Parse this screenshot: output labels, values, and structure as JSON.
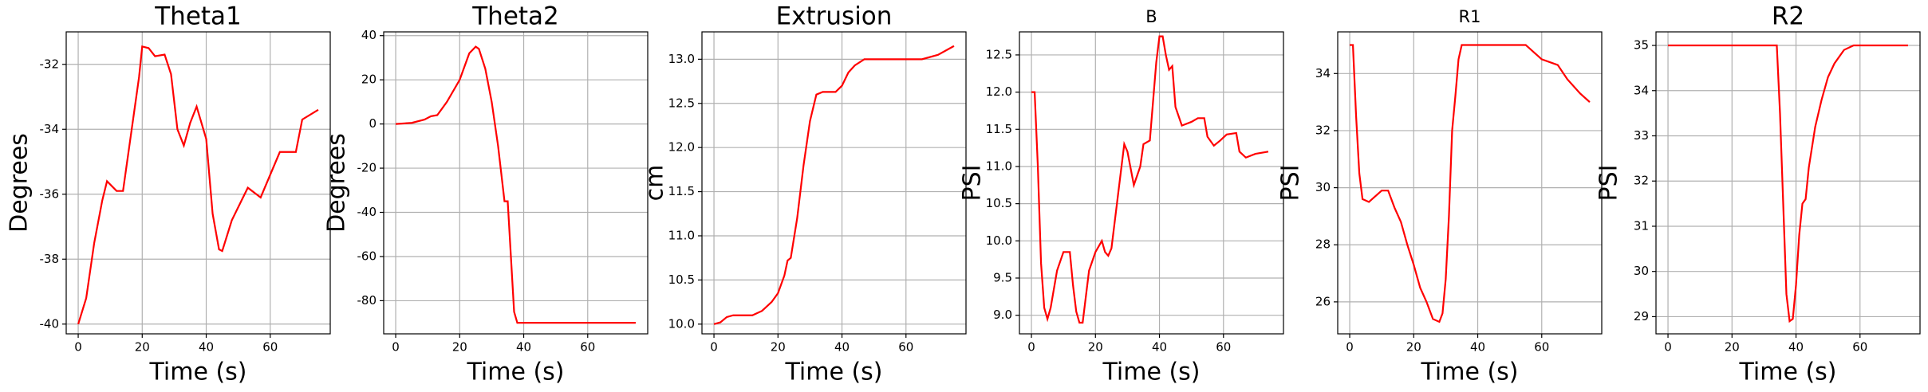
{
  "chart_data": [
    {
      "type": "line",
      "title": "Theta1",
      "xlabel": "Time (s)",
      "ylabel": "Degrees",
      "color": "#ff0000",
      "grid": true,
      "x": [
        0,
        2.5,
        5,
        7.5,
        9,
        12,
        14,
        16,
        19,
        20,
        22,
        24,
        27,
        29,
        31,
        33,
        35,
        37,
        40,
        42,
        44,
        45,
        48,
        51,
        53,
        57,
        63,
        68,
        70,
        75
      ],
      "values": [
        -40,
        -39.2,
        -37.5,
        -36.2,
        -35.6,
        -35.9,
        -35.9,
        -34.5,
        -32.4,
        -31.45,
        -31.5,
        -31.75,
        -31.7,
        -32.3,
        -34,
        -34.5,
        -33.8,
        -33.3,
        -34.3,
        -36.6,
        -37.7,
        -37.75,
        -36.8,
        -36.2,
        -35.8,
        -36.1,
        -34.7,
        -34.7,
        -33.7,
        -33.4
      ],
      "xlim": [
        -3.75,
        78.75
      ],
      "xticks": [
        0,
        20,
        40,
        60
      ],
      "ylim": [
        -40.3,
        -31.0
      ],
      "yticks": [
        -40,
        -38,
        -36,
        -34,
        -32
      ]
    },
    {
      "type": "line",
      "title": "Theta2",
      "xlabel": "Time (s)",
      "ylabel": "Degrees",
      "color": "#ff0000",
      "grid": true,
      "x": [
        0,
        5,
        9,
        11,
        13,
        16,
        20,
        23,
        25,
        26,
        28,
        30,
        32,
        34,
        35,
        36,
        37,
        38,
        75
      ],
      "values": [
        0,
        0.5,
        2,
        3.5,
        4,
        10,
        20,
        32,
        35,
        34,
        25,
        10,
        -10,
        -35,
        -35,
        -60,
        -85,
        -90,
        -90
      ],
      "xlim": [
        -3.75,
        78.75
      ],
      "xticks": [
        0,
        20,
        40,
        60
      ],
      "ylim": [
        -95,
        41.7
      ],
      "yticks": [
        -80,
        -60,
        -40,
        -20,
        0,
        20,
        40
      ]
    },
    {
      "type": "line",
      "title": "Extrusion",
      "xlabel": "Time (s)",
      "ylabel": "cm",
      "color": "#ff0000",
      "grid": true,
      "x": [
        0,
        2,
        4,
        6,
        12,
        15,
        18,
        20,
        22,
        23,
        24,
        26,
        28,
        30,
        32,
        34,
        38,
        40,
        42,
        44,
        47,
        65,
        70,
        75
      ],
      "values": [
        10,
        10.02,
        10.08,
        10.1,
        10.1,
        10.15,
        10.25,
        10.35,
        10.55,
        10.72,
        10.75,
        11.2,
        11.8,
        12.3,
        12.6,
        12.63,
        12.63,
        12.7,
        12.85,
        12.93,
        13.0,
        13.0,
        13.05,
        13.15
      ],
      "xlim": [
        -3.75,
        78.75
      ],
      "xticks": [
        0,
        20,
        40,
        60
      ],
      "ylim": [
        9.89,
        13.31
      ],
      "yticks": [
        {
          "value": 10,
          "label": "10.0"
        },
        10.5,
        {
          "value": 11,
          "label": "11.0"
        },
        11.5,
        {
          "value": 12,
          "label": "12.0"
        },
        12.5,
        {
          "value": 13,
          "label": "13.0"
        }
      ]
    },
    {
      "type": "line",
      "title": "B",
      "xlabel": "Time (s)",
      "ylabel": "PSI",
      "color": "#ff0000",
      "grid": true,
      "x": [
        0,
        1,
        2,
        3,
        4,
        5,
        6,
        8,
        10,
        12,
        13,
        14,
        15,
        16,
        18,
        20,
        22,
        23,
        24,
        25,
        27,
        29,
        30,
        32,
        34,
        35,
        37,
        39,
        40,
        41,
        42,
        43,
        44,
        45,
        47,
        50,
        52,
        54,
        55,
        57,
        59,
        61,
        64,
        65,
        67,
        70,
        74
      ],
      "values": [
        12.0,
        12.0,
        11,
        9.7,
        9.1,
        8.95,
        9.1,
        9.6,
        9.85,
        9.85,
        9.4,
        9.05,
        8.9,
        8.9,
        9.6,
        9.85,
        10.0,
        9.85,
        9.8,
        9.9,
        10.6,
        11.3,
        11.2,
        10.75,
        11.0,
        11.3,
        11.35,
        12.4,
        12.75,
        12.75,
        12.5,
        12.3,
        12.35,
        11.8,
        11.55,
        11.6,
        11.65,
        11.65,
        11.4,
        11.28,
        11.35,
        11.43,
        11.45,
        11.2,
        11.12,
        11.17,
        11.2
      ],
      "xlim": [
        -3.75,
        78.75
      ],
      "xticks": [
        0,
        20,
        40,
        60
      ],
      "ylim": [
        8.75,
        12.81
      ],
      "yticks": [
        {
          "value": 9,
          "label": "9.0"
        },
        9.5,
        {
          "value": 10,
          "label": "10.0"
        },
        10.5,
        {
          "value": 11,
          "label": "11.0"
        },
        11.5,
        {
          "value": 12,
          "label": "12.0"
        },
        12.5
      ]
    },
    {
      "type": "line",
      "title": "R1",
      "xlabel": "Time (s)",
      "ylabel": "PSI",
      "color": "#ff0000",
      "grid": true,
      "x": [
        0,
        1,
        2,
        3,
        4,
        6,
        8,
        10,
        12,
        13,
        14,
        16,
        18,
        20,
        22,
        24,
        26,
        28,
        29,
        30,
        31,
        32,
        33,
        34,
        35,
        55,
        57,
        60,
        65,
        68,
        72,
        75
      ],
      "values": [
        35,
        35,
        32.5,
        30.5,
        29.6,
        29.5,
        29.7,
        29.9,
        29.9,
        29.6,
        29.3,
        28.8,
        28.0,
        27.3,
        26.5,
        26.0,
        25.4,
        25.3,
        25.6,
        26.8,
        29,
        32,
        33.2,
        34.5,
        35,
        35,
        34.8,
        34.5,
        34.3,
        33.8,
        33.3,
        33.0
      ],
      "xlim": [
        -3.75,
        78.75
      ],
      "xticks": [
        0,
        20,
        40,
        60
      ],
      "ylim": [
        24.88,
        35.46
      ],
      "yticks": [
        26,
        28,
        30,
        32,
        34
      ]
    },
    {
      "type": "line",
      "title": "R2",
      "xlabel": "Time (s)",
      "ylabel": "PSI",
      "color": "#ff0000",
      "grid": true,
      "x": [
        0,
        34,
        35,
        36,
        37,
        38,
        39,
        40,
        41,
        42,
        43,
        44,
        46,
        48,
        50,
        52,
        55,
        58,
        75
      ],
      "values": [
        35,
        35,
        33.5,
        31.5,
        29.5,
        28.9,
        28.95,
        29.7,
        30.8,
        31.5,
        31.6,
        32.3,
        33.2,
        33.8,
        34.3,
        34.6,
        34.9,
        35,
        35
      ],
      "xlim": [
        -3.75,
        78.75
      ],
      "xticks": [
        0,
        20,
        40,
        60
      ],
      "ylim": [
        28.62,
        35.3
      ],
      "yticks": [
        29,
        30,
        31,
        32,
        33,
        34,
        35
      ]
    }
  ]
}
